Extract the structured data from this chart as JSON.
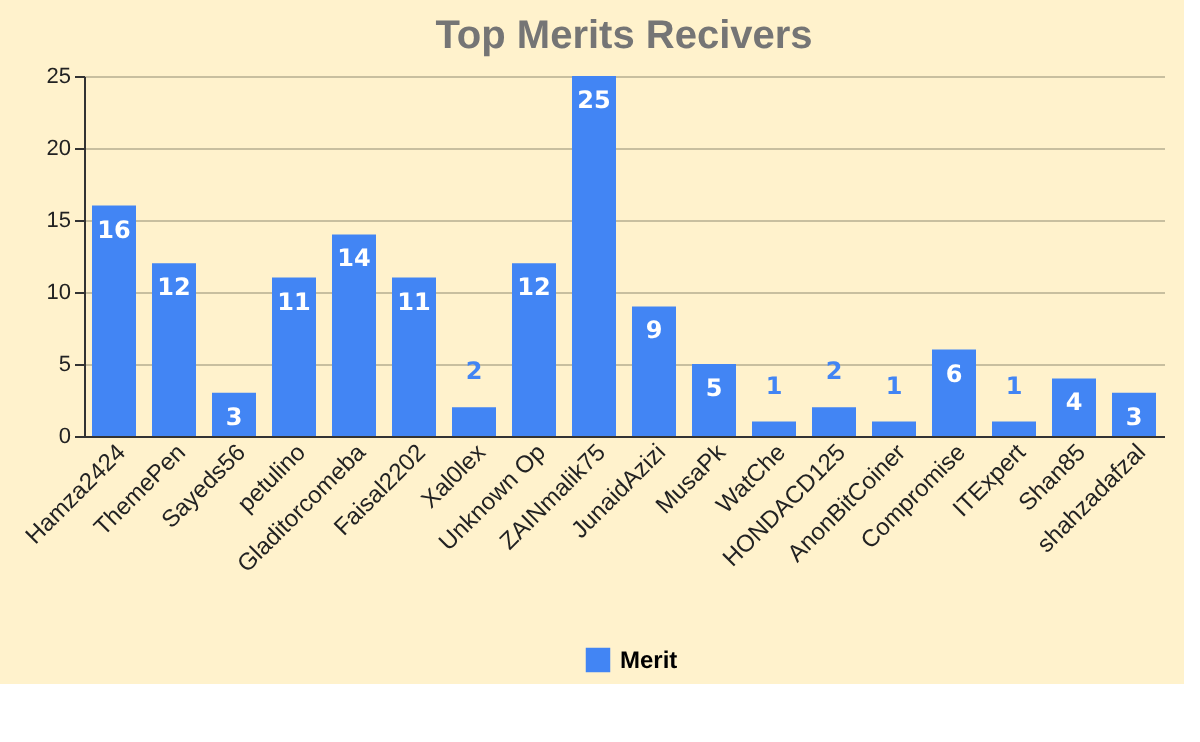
{
  "chart_data": {
    "type": "bar",
    "title": "Top Merits Recivers",
    "categories": [
      "Hamza2424",
      "ThemePen",
      "Sayeds56",
      "petulino",
      "Gladitorcomeba",
      "Faisal2202",
      "Xal0lex",
      "Unknown Op",
      "ZAINmalik75",
      "JunaidAzizi",
      "MusaPk",
      "WatChe",
      "HONDACD125",
      "AnonBitCoiner",
      "Compromise",
      "ITExpert",
      "Shan85",
      "shahzadafzal"
    ],
    "series": [
      {
        "name": "Merit",
        "color": "#4285f4",
        "values": [
          16,
          12,
          3,
          11,
          14,
          11,
          2,
          12,
          25,
          9,
          5,
          1,
          2,
          1,
          6,
          1,
          4,
          3
        ]
      }
    ],
    "ylim": [
      0,
      25
    ],
    "yticks": [
      0,
      5,
      10,
      15,
      20,
      25
    ],
    "grid": "y",
    "legend": "bottom",
    "data_labels": true
  }
}
